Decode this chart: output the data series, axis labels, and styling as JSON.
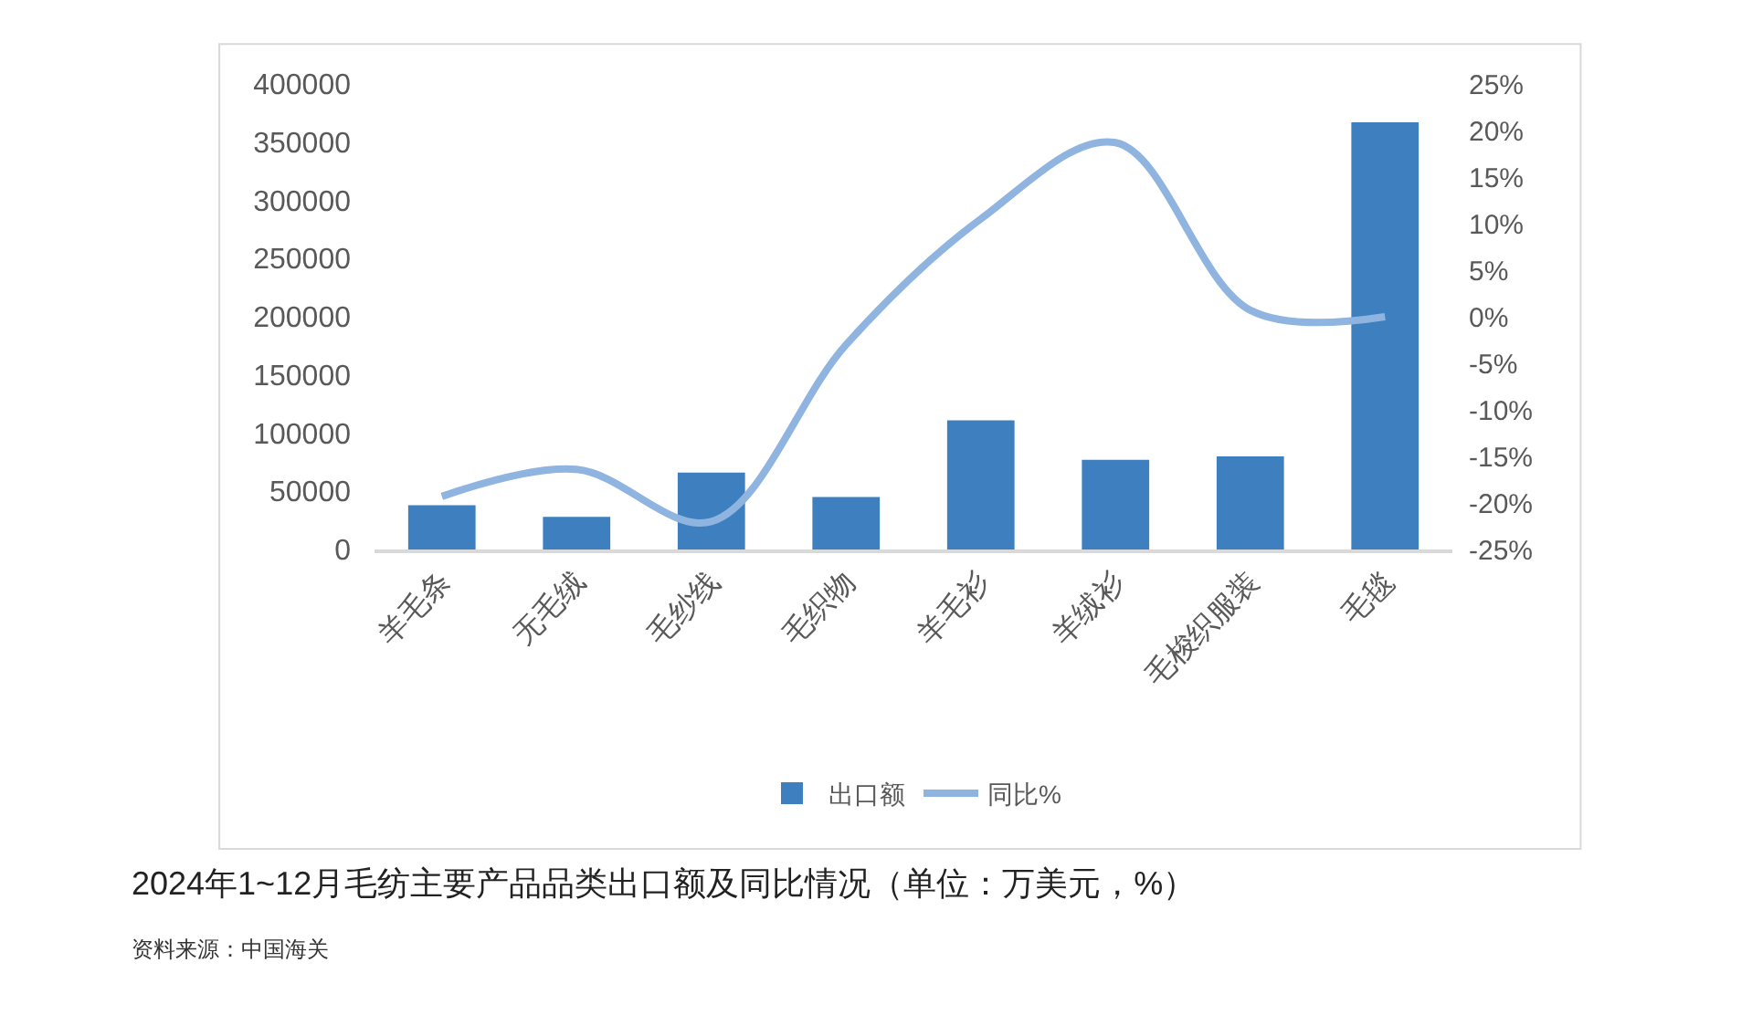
{
  "chart_data": {
    "type": "bar",
    "title": "2024年1~12月毛纺主要产品品类出口额及同比情况（单位：万美元，%）",
    "categories": [
      "羊毛条",
      "无毛绒",
      "毛纱线",
      "毛织物",
      "羊毛衫",
      "羊绒衫",
      "毛梭织服装",
      "毛毯"
    ],
    "series": [
      {
        "name": "出口额",
        "color": "#3d7fbf",
        "values": [
          38000,
          28000,
          66000,
          45000,
          111000,
          77000,
          80000,
          367000
        ]
      },
      {
        "name": "同比%",
        "type": "line",
        "axis": "y2",
        "color": "#8fb4e0",
        "values": [
          -19.3,
          -16.4,
          -22,
          -3,
          10.5,
          18.7,
          0.7,
          0
        ]
      }
    ],
    "ylim": [
      0,
      400000
    ],
    "yticks": [
      0,
      50000,
      100000,
      150000,
      200000,
      250000,
      300000,
      350000,
      400000
    ],
    "y2lim": [
      -25,
      25
    ],
    "y2ticks": [
      {
        "value": -25,
        "label": "-25%"
      },
      {
        "value": -20,
        "label": "-20%"
      },
      {
        "value": -15,
        "label": "-15%"
      },
      {
        "value": -10,
        "label": "-10%"
      },
      {
        "value": -5,
        "label": "-5%"
      },
      {
        "value": 0,
        "label": "0%"
      },
      {
        "value": 5,
        "label": "5%"
      },
      {
        "value": 10,
        "label": "10%"
      },
      {
        "value": 15,
        "label": "15%"
      },
      {
        "value": 20,
        "label": "20%"
      },
      {
        "value": 25,
        "label": "25%"
      }
    ],
    "marker": "none",
    "grid": false,
    "legend": "bottom",
    "annotations": [
      "资料来源：中国海关"
    ]
  }
}
